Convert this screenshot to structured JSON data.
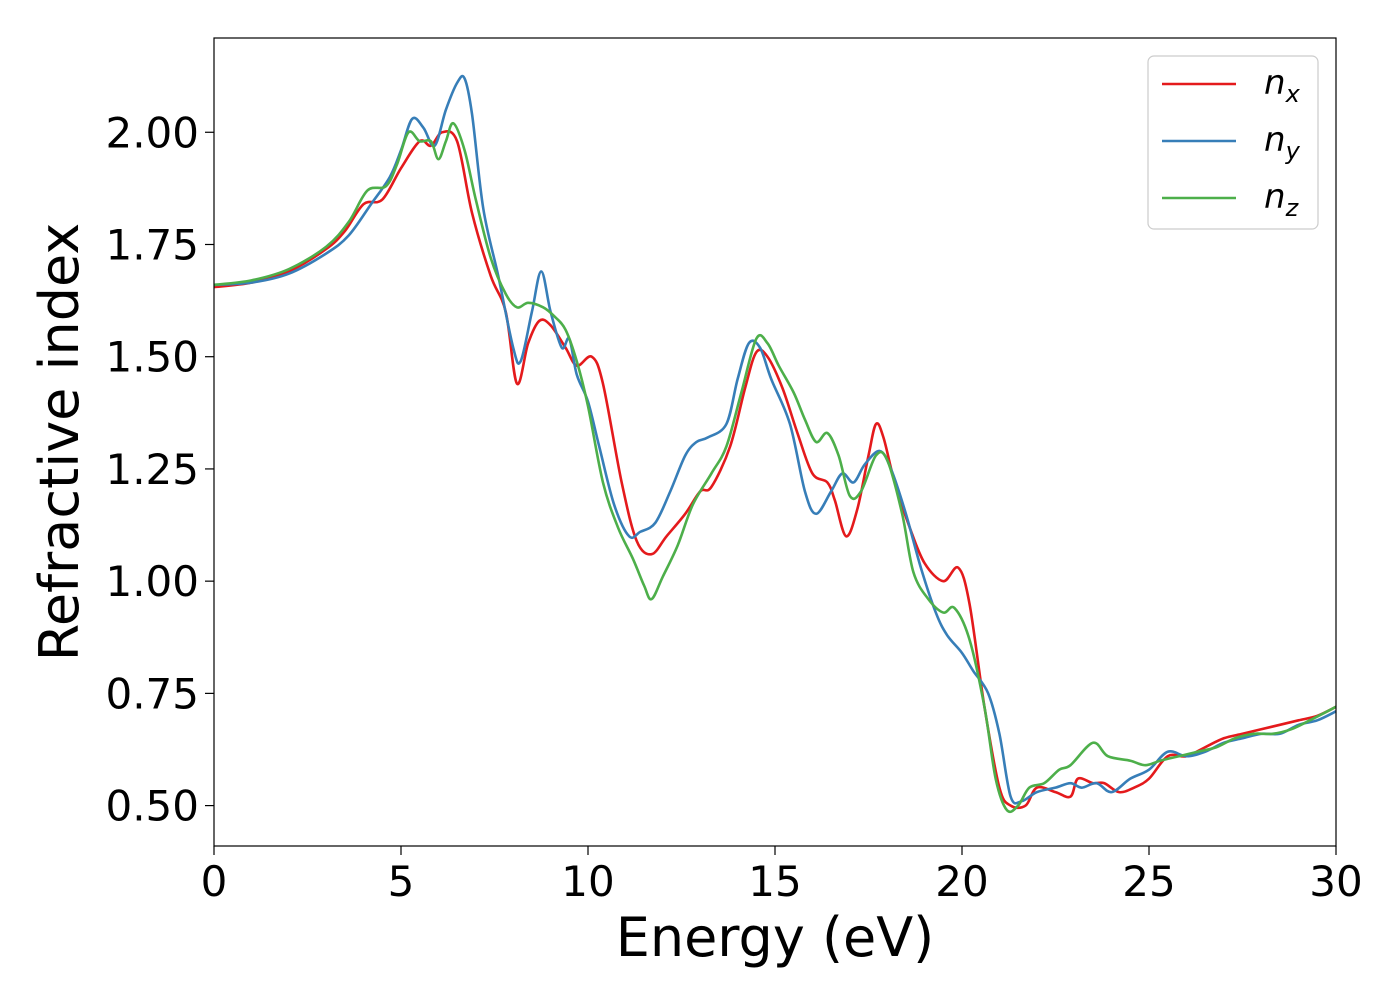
{
  "chart_data": {
    "type": "line",
    "xlabel": "Energy (eV)",
    "ylabel": "Refractive index",
    "xlim": [
      0,
      30
    ],
    "ylim": [
      0.41,
      2.21
    ],
    "xticks": [
      0,
      5,
      10,
      15,
      20,
      25,
      30
    ],
    "xtick_labels": [
      "0",
      "5",
      "10",
      "15",
      "20",
      "25",
      "30"
    ],
    "yticks": [
      0.5,
      0.75,
      1.0,
      1.25,
      1.5,
      1.75,
      2.0
    ],
    "ytick_labels": [
      "0.50",
      "0.75",
      "1.00",
      "1.25",
      "1.50",
      "1.75",
      "2.00"
    ],
    "grid": false,
    "legend_position": "top-right",
    "series": [
      {
        "name": "n",
        "subscript": "x",
        "color": "#e41a1c",
        "points": [
          [
            0,
            1.655
          ],
          [
            1,
            1.665
          ],
          [
            2,
            1.69
          ],
          [
            3,
            1.74
          ],
          [
            3.5,
            1.78
          ],
          [
            4,
            1.84
          ],
          [
            4.5,
            1.85
          ],
          [
            5,
            1.92
          ],
          [
            5.5,
            1.98
          ],
          [
            5.8,
            1.97
          ],
          [
            6.1,
            2.0
          ],
          [
            6.5,
            1.98
          ],
          [
            6.9,
            1.82
          ],
          [
            7.4,
            1.68
          ],
          [
            7.8,
            1.6
          ],
          [
            8.1,
            1.44
          ],
          [
            8.4,
            1.53
          ],
          [
            8.7,
            1.58
          ],
          [
            9.0,
            1.57
          ],
          [
            9.4,
            1.52
          ],
          [
            9.7,
            1.48
          ],
          [
            10.1,
            1.5
          ],
          [
            10.4,
            1.44
          ],
          [
            10.9,
            1.22
          ],
          [
            11.3,
            1.09
          ],
          [
            11.7,
            1.06
          ],
          [
            12.1,
            1.1
          ],
          [
            12.6,
            1.15
          ],
          [
            13.0,
            1.2
          ],
          [
            13.3,
            1.21
          ],
          [
            13.8,
            1.3
          ],
          [
            14.2,
            1.43
          ],
          [
            14.5,
            1.51
          ],
          [
            14.8,
            1.5
          ],
          [
            15.2,
            1.43
          ],
          [
            15.6,
            1.33
          ],
          [
            16.0,
            1.24
          ],
          [
            16.4,
            1.22
          ],
          [
            16.6,
            1.18
          ],
          [
            16.9,
            1.1
          ],
          [
            17.2,
            1.16
          ],
          [
            17.5,
            1.28
          ],
          [
            17.7,
            1.35
          ],
          [
            17.9,
            1.32
          ],
          [
            18.2,
            1.22
          ],
          [
            18.6,
            1.12
          ],
          [
            19.0,
            1.04
          ],
          [
            19.5,
            1.0
          ],
          [
            19.9,
            1.03
          ],
          [
            20.2,
            0.95
          ],
          [
            20.6,
            0.72
          ],
          [
            21.0,
            0.54
          ],
          [
            21.3,
            0.5
          ],
          [
            21.7,
            0.5
          ],
          [
            22.0,
            0.54
          ],
          [
            22.5,
            0.53
          ],
          [
            22.9,
            0.52
          ],
          [
            23.1,
            0.56
          ],
          [
            23.5,
            0.55
          ],
          [
            23.8,
            0.55
          ],
          [
            24.2,
            0.53
          ],
          [
            24.6,
            0.54
          ],
          [
            25.0,
            0.56
          ],
          [
            25.5,
            0.61
          ],
          [
            26.0,
            0.61
          ],
          [
            26.5,
            0.63
          ],
          [
            27.0,
            0.65
          ],
          [
            27.5,
            0.66
          ],
          [
            28.0,
            0.67
          ],
          [
            28.5,
            0.68
          ],
          [
            29.0,
            0.69
          ],
          [
            29.5,
            0.7
          ],
          [
            30,
            0.72
          ]
        ]
      },
      {
        "name": "n",
        "subscript": "y",
        "color": "#377eb8",
        "points": [
          [
            0,
            1.66
          ],
          [
            1,
            1.665
          ],
          [
            2,
            1.685
          ],
          [
            3,
            1.73
          ],
          [
            3.6,
            1.77
          ],
          [
            4.2,
            1.84
          ],
          [
            4.7,
            1.9
          ],
          [
            5.0,
            1.96
          ],
          [
            5.3,
            2.03
          ],
          [
            5.6,
            2.01
          ],
          [
            5.9,
            1.97
          ],
          [
            6.2,
            2.05
          ],
          [
            6.5,
            2.11
          ],
          [
            6.7,
            2.12
          ],
          [
            6.9,
            2.04
          ],
          [
            7.2,
            1.83
          ],
          [
            7.6,
            1.68
          ],
          [
            8.0,
            1.52
          ],
          [
            8.2,
            1.49
          ],
          [
            8.5,
            1.6
          ],
          [
            8.75,
            1.69
          ],
          [
            9.0,
            1.6
          ],
          [
            9.3,
            1.52
          ],
          [
            9.5,
            1.54
          ],
          [
            9.7,
            1.46
          ],
          [
            10.0,
            1.4
          ],
          [
            10.3,
            1.3
          ],
          [
            10.7,
            1.17
          ],
          [
            11.1,
            1.1
          ],
          [
            11.4,
            1.11
          ],
          [
            11.8,
            1.13
          ],
          [
            12.2,
            1.2
          ],
          [
            12.6,
            1.28
          ],
          [
            12.9,
            1.31
          ],
          [
            13.2,
            1.32
          ],
          [
            13.7,
            1.35
          ],
          [
            14.0,
            1.45
          ],
          [
            14.3,
            1.53
          ],
          [
            14.6,
            1.52
          ],
          [
            14.9,
            1.45
          ],
          [
            15.4,
            1.35
          ],
          [
            15.8,
            1.2
          ],
          [
            16.1,
            1.15
          ],
          [
            16.5,
            1.2
          ],
          [
            16.8,
            1.24
          ],
          [
            17.1,
            1.22
          ],
          [
            17.4,
            1.26
          ],
          [
            17.8,
            1.29
          ],
          [
            18.1,
            1.25
          ],
          [
            18.5,
            1.15
          ],
          [
            18.9,
            1.03
          ],
          [
            19.3,
            0.93
          ],
          [
            19.6,
            0.88
          ],
          [
            20.0,
            0.84
          ],
          [
            20.3,
            0.8
          ],
          [
            20.7,
            0.75
          ],
          [
            21.0,
            0.66
          ],
          [
            21.3,
            0.52
          ],
          [
            21.6,
            0.51
          ],
          [
            22.0,
            0.53
          ],
          [
            22.5,
            0.54
          ],
          [
            22.9,
            0.55
          ],
          [
            23.2,
            0.54
          ],
          [
            23.6,
            0.55
          ],
          [
            24.0,
            0.53
          ],
          [
            24.5,
            0.56
          ],
          [
            25.0,
            0.58
          ],
          [
            25.5,
            0.62
          ],
          [
            26.0,
            0.61
          ],
          [
            26.5,
            0.62
          ],
          [
            27.0,
            0.64
          ],
          [
            27.5,
            0.65
          ],
          [
            28.0,
            0.66
          ],
          [
            28.5,
            0.66
          ],
          [
            29.0,
            0.68
          ],
          [
            29.5,
            0.69
          ],
          [
            30,
            0.71
          ]
        ]
      },
      {
        "name": "n",
        "subscript": "z",
        "color": "#4daf4a",
        "points": [
          [
            0,
            1.66
          ],
          [
            1,
            1.67
          ],
          [
            2,
            1.695
          ],
          [
            3,
            1.745
          ],
          [
            3.6,
            1.8
          ],
          [
            4.1,
            1.87
          ],
          [
            4.6,
            1.88
          ],
          [
            4.9,
            1.93
          ],
          [
            5.2,
            2.0
          ],
          [
            5.5,
            1.98
          ],
          [
            5.8,
            1.98
          ],
          [
            6.0,
            1.94
          ],
          [
            6.2,
            1.98
          ],
          [
            6.4,
            2.02
          ],
          [
            6.7,
            1.96
          ],
          [
            7.0,
            1.85
          ],
          [
            7.4,
            1.72
          ],
          [
            7.8,
            1.64
          ],
          [
            8.1,
            1.61
          ],
          [
            8.4,
            1.62
          ],
          [
            8.8,
            1.61
          ],
          [
            9.1,
            1.59
          ],
          [
            9.4,
            1.56
          ],
          [
            9.7,
            1.49
          ],
          [
            10.0,
            1.39
          ],
          [
            10.4,
            1.22
          ],
          [
            10.8,
            1.12
          ],
          [
            11.2,
            1.05
          ],
          [
            11.5,
            0.99
          ],
          [
            11.7,
            0.96
          ],
          [
            12.0,
            1.01
          ],
          [
            12.4,
            1.08
          ],
          [
            12.8,
            1.17
          ],
          [
            13.3,
            1.24
          ],
          [
            13.7,
            1.3
          ],
          [
            14.1,
            1.42
          ],
          [
            14.5,
            1.54
          ],
          [
            14.8,
            1.53
          ],
          [
            15.1,
            1.48
          ],
          [
            15.5,
            1.42
          ],
          [
            15.8,
            1.36
          ],
          [
            16.1,
            1.31
          ],
          [
            16.4,
            1.33
          ],
          [
            16.7,
            1.28
          ],
          [
            17.0,
            1.19
          ],
          [
            17.3,
            1.2
          ],
          [
            17.7,
            1.28
          ],
          [
            18.0,
            1.27
          ],
          [
            18.4,
            1.15
          ],
          [
            18.7,
            1.02
          ],
          [
            19.1,
            0.96
          ],
          [
            19.5,
            0.93
          ],
          [
            19.8,
            0.94
          ],
          [
            20.2,
            0.87
          ],
          [
            20.6,
            0.72
          ],
          [
            20.9,
            0.56
          ],
          [
            21.2,
            0.49
          ],
          [
            21.5,
            0.5
          ],
          [
            21.8,
            0.54
          ],
          [
            22.2,
            0.55
          ],
          [
            22.6,
            0.58
          ],
          [
            22.9,
            0.59
          ],
          [
            23.5,
            0.64
          ],
          [
            23.9,
            0.61
          ],
          [
            24.5,
            0.6
          ],
          [
            24.9,
            0.59
          ],
          [
            25.3,
            0.6
          ],
          [
            25.8,
            0.61
          ],
          [
            26.3,
            0.62
          ],
          [
            26.8,
            0.63
          ],
          [
            27.3,
            0.65
          ],
          [
            27.8,
            0.66
          ],
          [
            28.3,
            0.66
          ],
          [
            28.8,
            0.67
          ],
          [
            29.3,
            0.69
          ],
          [
            30,
            0.72
          ]
        ]
      }
    ]
  }
}
